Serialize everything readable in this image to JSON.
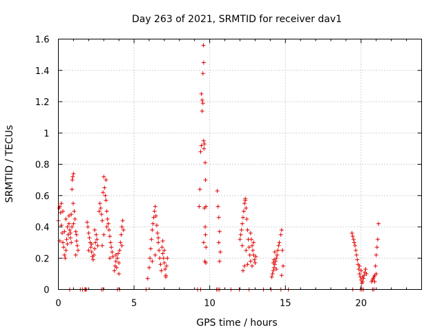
{
  "chart_data": {
    "type": "scatter",
    "title": "Day 263 of 2021, SRMTID for receiver dav1",
    "xlabel": "GPS time / hours",
    "ylabel": "SRMTID / TECUs",
    "xlim": [
      0,
      24
    ],
    "ylim": [
      0,
      1.6
    ],
    "xticks": [
      0,
      5,
      10,
      15,
      20
    ],
    "yticks": [
      0,
      0.2,
      0.4,
      0.6,
      0.8,
      1,
      1.2,
      1.4,
      1.6
    ],
    "ytick_labels": [
      "0",
      "0.2",
      "0.4",
      "0.6",
      "0.8",
      "1",
      "1.2",
      "1.4",
      "1.6"
    ],
    "grid": true,
    "marker": "+",
    "color": "#e00000",
    "series": [
      {
        "name": "SRMTID",
        "points": [
          [
            0.0,
            0.44
          ],
          [
            0.05,
            0.52
          ],
          [
            0.1,
            0.53
          ],
          [
            0.15,
            0.49
          ],
          [
            0.2,
            0.41
          ],
          [
            0.25,
            0.36
          ],
          [
            0.3,
            0.3
          ],
          [
            0.35,
            0.27
          ],
          [
            0.4,
            0.22
          ],
          [
            0.45,
            0.2
          ],
          [
            0.5,
            0.25
          ],
          [
            0.55,
            0.32
          ],
          [
            0.6,
            0.29
          ],
          [
            0.65,
            0.35
          ],
          [
            0.7,
            0.42
          ],
          [
            0.75,
            0.38
          ],
          [
            0.8,
            0.33
          ],
          [
            0.85,
            0.3
          ],
          [
            0.2,
            0.55
          ],
          [
            0.3,
            0.5
          ],
          [
            0.5,
            0.45
          ],
          [
            0.6,
            0.4
          ],
          [
            0.7,
            0.47
          ],
          [
            0.4,
            0.37
          ],
          [
            0.1,
            0.31
          ],
          [
            0.9,
            0.64
          ],
          [
            0.95,
            0.72
          ],
          [
            1.0,
            0.74
          ],
          [
            0.92,
            0.7
          ],
          [
            0.98,
            0.55
          ],
          [
            1.05,
            0.5
          ],
          [
            0.85,
            0.48
          ],
          [
            1.1,
            0.45
          ],
          [
            1.0,
            0.42
          ],
          [
            0.9,
            0.4
          ],
          [
            1.15,
            0.37
          ],
          [
            1.2,
            0.31
          ],
          [
            1.25,
            0.28
          ],
          [
            1.3,
            0.25
          ],
          [
            1.15,
            0.22
          ],
          [
            1.2,
            0.35
          ],
          [
            0.8,
            0.36
          ],
          [
            1.9,
            0.43
          ],
          [
            1.95,
            0.4
          ],
          [
            2.0,
            0.36
          ],
          [
            2.05,
            0.33
          ],
          [
            2.1,
            0.3
          ],
          [
            2.15,
            0.27
          ],
          [
            2.2,
            0.24
          ],
          [
            2.25,
            0.21
          ],
          [
            2.3,
            0.19
          ],
          [
            2.35,
            0.22
          ],
          [
            2.4,
            0.26
          ],
          [
            2.45,
            0.3
          ],
          [
            2.5,
            0.35
          ],
          [
            2.55,
            0.32
          ],
          [
            2.6,
            0.28
          ],
          [
            2.0,
            0.25
          ],
          [
            2.2,
            0.29
          ],
          [
            2.4,
            0.38
          ],
          [
            2.7,
            0.5
          ],
          [
            2.75,
            0.55
          ],
          [
            2.8,
            0.52
          ],
          [
            2.85,
            0.48
          ],
          [
            2.9,
            0.44
          ],
          [
            2.95,
            0.62
          ],
          [
            3.0,
            0.72
          ],
          [
            3.05,
            0.65
          ],
          [
            3.1,
            0.6
          ],
          [
            3.15,
            0.57
          ],
          [
            3.2,
            0.5
          ],
          [
            3.25,
            0.45
          ],
          [
            3.3,
            0.42
          ],
          [
            3.35,
            0.38
          ],
          [
            3.4,
            0.34
          ],
          [
            3.45,
            0.3
          ],
          [
            3.5,
            0.27
          ],
          [
            3.55,
            0.24
          ],
          [
            3.6,
            0.21
          ],
          [
            3.0,
            0.35
          ],
          [
            3.2,
            0.4
          ],
          [
            2.9,
            0.28
          ],
          [
            3.15,
            0.7
          ],
          [
            3.4,
            0.2
          ],
          [
            3.7,
            0.12
          ],
          [
            3.75,
            0.15
          ],
          [
            3.8,
            0.18
          ],
          [
            3.85,
            0.14
          ],
          [
            3.9,
            0.2
          ],
          [
            3.95,
            0.23
          ],
          [
            4.0,
            0.17
          ],
          [
            4.05,
            0.25
          ],
          [
            4.1,
            0.3
          ],
          [
            4.15,
            0.35
          ],
          [
            4.2,
            0.4
          ],
          [
            4.25,
            0.44
          ],
          [
            4.3,
            0.38
          ],
          [
            4.2,
            0.28
          ],
          [
            4.0,
            0.1
          ],
          [
            3.8,
            0.22
          ],
          [
            5.9,
            0.07
          ],
          [
            6.0,
            0.14
          ],
          [
            6.05,
            0.2
          ],
          [
            6.1,
            0.26
          ],
          [
            6.15,
            0.32
          ],
          [
            6.2,
            0.38
          ],
          [
            6.25,
            0.42
          ],
          [
            6.3,
            0.46
          ],
          [
            6.35,
            0.5
          ],
          [
            6.4,
            0.53
          ],
          [
            6.45,
            0.47
          ],
          [
            6.5,
            0.41
          ],
          [
            6.55,
            0.36
          ],
          [
            6.6,
            0.3
          ],
          [
            6.65,
            0.25
          ],
          [
            6.7,
            0.2
          ],
          [
            6.75,
            0.16
          ],
          [
            6.8,
            0.12
          ],
          [
            6.2,
            0.18
          ],
          [
            6.4,
            0.22
          ],
          [
            6.6,
            0.33
          ],
          [
            6.85,
            0.27
          ],
          [
            6.9,
            0.23
          ],
          [
            6.95,
            0.2
          ],
          [
            7.0,
            0.17
          ],
          [
            7.05,
            0.13
          ],
          [
            7.1,
            0.09
          ],
          [
            7.15,
            0.15
          ],
          [
            7.2,
            0.2
          ],
          [
            7.0,
            0.25
          ],
          [
            6.9,
            0.31
          ],
          [
            7.1,
            0.08
          ],
          [
            9.3,
            0.53
          ],
          [
            9.35,
            0.64
          ],
          [
            9.4,
            0.88
          ],
          [
            9.45,
            0.92
          ],
          [
            9.5,
            1.14
          ],
          [
            9.55,
            1.19
          ],
          [
            9.5,
            1.21
          ],
          [
            9.45,
            1.25
          ],
          [
            9.55,
            1.38
          ],
          [
            9.6,
            1.45
          ],
          [
            9.58,
            1.56
          ],
          [
            9.6,
            0.95
          ],
          [
            9.65,
            0.93
          ],
          [
            9.62,
            0.9
          ],
          [
            9.7,
            0.81
          ],
          [
            9.72,
            0.7
          ],
          [
            9.75,
            0.53
          ],
          [
            9.65,
            0.52
          ],
          [
            9.7,
            0.4
          ],
          [
            9.72,
            0.35
          ],
          [
            9.75,
            0.27
          ],
          [
            9.68,
            0.18
          ],
          [
            9.74,
            0.17
          ],
          [
            9.6,
            0.3
          ],
          [
            10.5,
            0.63
          ],
          [
            10.55,
            0.53
          ],
          [
            10.6,
            0.46
          ],
          [
            10.65,
            0.37
          ],
          [
            10.6,
            0.3
          ],
          [
            10.7,
            0.24
          ],
          [
            10.65,
            0.18
          ],
          [
            12.0,
            0.32
          ],
          [
            12.05,
            0.35
          ],
          [
            12.1,
            0.38
          ],
          [
            12.15,
            0.42
          ],
          [
            12.2,
            0.46
          ],
          [
            12.25,
            0.5
          ],
          [
            12.3,
            0.55
          ],
          [
            12.35,
            0.57
          ],
          [
            12.4,
            0.52
          ],
          [
            12.45,
            0.45
          ],
          [
            12.5,
            0.38
          ],
          [
            12.55,
            0.32
          ],
          [
            12.6,
            0.27
          ],
          [
            12.65,
            0.22
          ],
          [
            12.7,
            0.18
          ],
          [
            12.3,
            0.15
          ],
          [
            12.2,
            0.12
          ],
          [
            12.5,
            0.16
          ],
          [
            12.4,
            0.25
          ],
          [
            12.15,
            0.28
          ],
          [
            12.35,
            0.58
          ],
          [
            12.7,
            0.36
          ],
          [
            12.75,
            0.32
          ],
          [
            12.8,
            0.28
          ],
          [
            12.85,
            0.25
          ],
          [
            12.9,
            0.22
          ],
          [
            12.95,
            0.19
          ],
          [
            13.0,
            0.17
          ],
          [
            13.05,
            0.21
          ],
          [
            12.8,
            0.15
          ],
          [
            12.9,
            0.3
          ],
          [
            14.1,
            0.08
          ],
          [
            14.15,
            0.1
          ],
          [
            14.2,
            0.12
          ],
          [
            14.25,
            0.14
          ],
          [
            14.3,
            0.16
          ],
          [
            14.35,
            0.18
          ],
          [
            14.4,
            0.2
          ],
          [
            14.45,
            0.22
          ],
          [
            14.5,
            0.25
          ],
          [
            14.55,
            0.28
          ],
          [
            14.6,
            0.3
          ],
          [
            14.25,
            0.19
          ],
          [
            14.4,
            0.13
          ],
          [
            14.3,
            0.24
          ],
          [
            14.2,
            0.17
          ],
          [
            14.7,
            0.35
          ],
          [
            14.75,
            0.38
          ],
          [
            14.8,
            0.25
          ],
          [
            14.85,
            0.15
          ],
          [
            14.75,
            0.09
          ],
          [
            19.4,
            0.36
          ],
          [
            19.45,
            0.34
          ],
          [
            19.5,
            0.32
          ],
          [
            19.55,
            0.3
          ],
          [
            19.6,
            0.28
          ],
          [
            19.65,
            0.25
          ],
          [
            19.7,
            0.22
          ],
          [
            19.75,
            0.19
          ],
          [
            19.8,
            0.16
          ],
          [
            19.85,
            0.13
          ],
          [
            19.9,
            0.1
          ],
          [
            19.95,
            0.08
          ],
          [
            20.0,
            0.06
          ],
          [
            20.05,
            0.04
          ],
          [
            20.1,
            0.05
          ],
          [
            20.15,
            0.07
          ],
          [
            20.2,
            0.09
          ],
          [
            20.25,
            0.11
          ],
          [
            20.3,
            0.13
          ],
          [
            20.35,
            0.1
          ],
          [
            19.9,
            0.15
          ],
          [
            20.0,
            0.12
          ],
          [
            20.1,
            0.08
          ],
          [
            20.7,
            0.05
          ],
          [
            20.75,
            0.06
          ],
          [
            20.8,
            0.07
          ],
          [
            20.85,
            0.08
          ],
          [
            20.9,
            0.09
          ],
          [
            20.95,
            0.15
          ],
          [
            21.0,
            0.22
          ],
          [
            21.05,
            0.27
          ],
          [
            21.1,
            0.32
          ],
          [
            21.15,
            0.42
          ],
          [
            21.0,
            0.1
          ],
          [
            20.9,
            0.05
          ]
        ],
        "zero_points": [
          0.75,
          1.45,
          1.6,
          1.75,
          1.8,
          1.85,
          2.85,
          2.95,
          3.9,
          4.05,
          5.8,
          9.2,
          9.4,
          10.45,
          10.55,
          10.65,
          11.4,
          11.95,
          12.6,
          13.55,
          14.05,
          14.7,
          15.2,
          19.45,
          19.95,
          20.05,
          20.15,
          20.75,
          20.85
        ]
      }
    ]
  }
}
